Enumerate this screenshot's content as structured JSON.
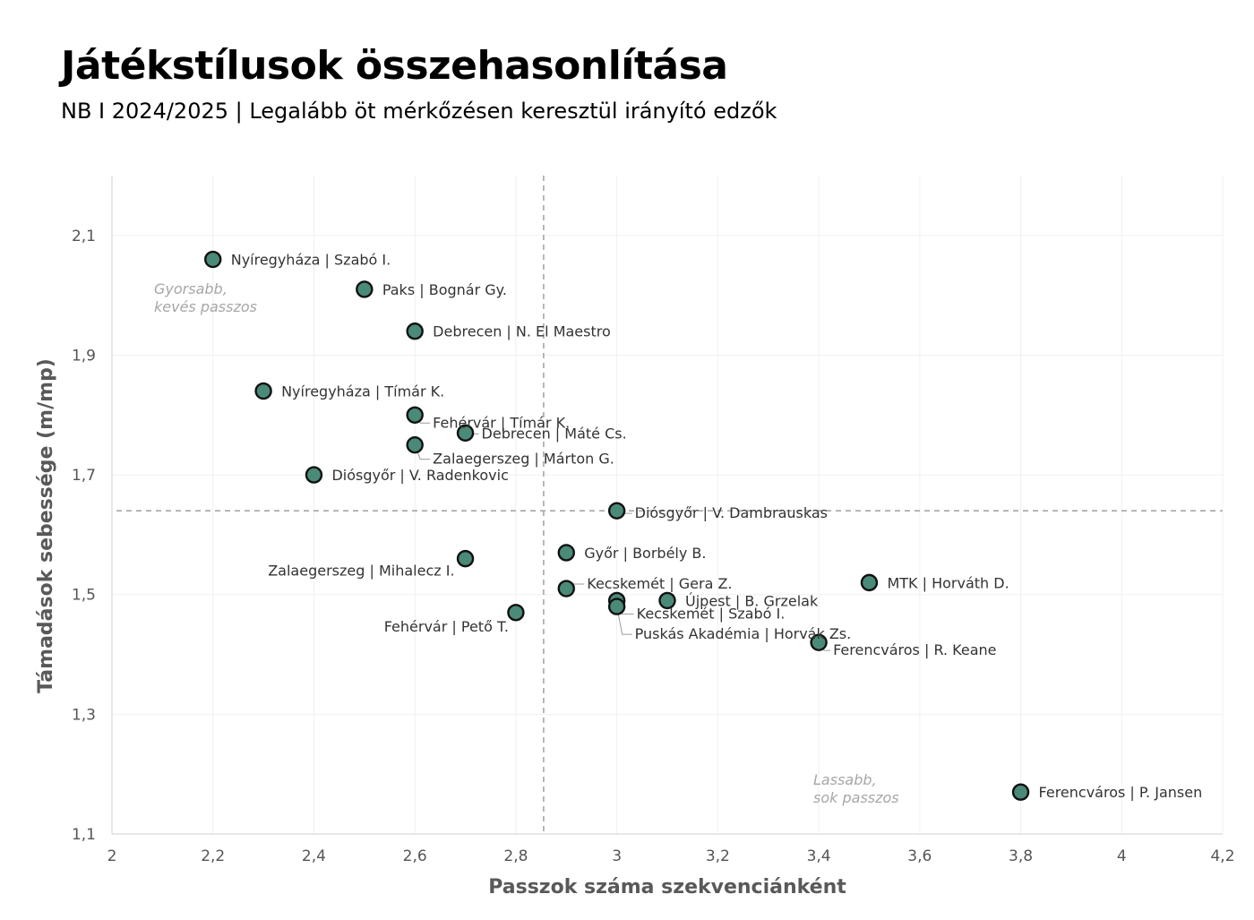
{
  "title": "Játékstílusok összehasonlítása",
  "subtitle": "NB I 2024/2025  |  Legalább öt mérkőzésen keresztül irányító edzők",
  "chart_data": {
    "type": "scatter",
    "xlabel": "Passzok száma szekvenciánként",
    "ylabel": "Támadások sebessége (m/mp)",
    "xlim": [
      2,
      4.2
    ],
    "ylim": [
      1.1,
      2.2
    ],
    "xticks": [
      "2",
      "2,2",
      "2,4",
      "2,6",
      "2,8",
      "3",
      "3,2",
      "3,4",
      "3,6",
      "3,8",
      "4",
      "4,2"
    ],
    "yticks": [
      "1,1",
      "1,3",
      "1,5",
      "1,7",
      "1,9",
      "2,1"
    ],
    "grid": true,
    "marker_color": "#4a8a78",
    "reference_lines": {
      "x": 2.855,
      "y": 1.64
    },
    "quadrant_notes": [
      {
        "line1": "Gyorsabb,",
        "line2": "kevés passzos"
      },
      {
        "line1": "Lassabb,",
        "line2": "sok passzos"
      }
    ],
    "points": [
      {
        "label": "Nyíregyháza | Szabó I.",
        "x": 2.2,
        "y": 2.06
      },
      {
        "label": "Paks | Bognár Gy.",
        "x": 2.5,
        "y": 2.01
      },
      {
        "label": "Debrecen | N. El Maestro",
        "x": 2.6,
        "y": 1.94
      },
      {
        "label": "Nyíregyháza | Tímár K.",
        "x": 2.3,
        "y": 1.84
      },
      {
        "label": "Fehérvár | Tímár K.",
        "x": 2.6,
        "y": 1.8
      },
      {
        "label": "Debrecen | Máté Cs.",
        "x": 2.7,
        "y": 1.77
      },
      {
        "label": "Zalaegerszeg | Márton G.",
        "x": 2.6,
        "y": 1.75
      },
      {
        "label": "Diósgyőr | V. Radenkovic",
        "x": 2.4,
        "y": 1.7
      },
      {
        "label": "Diósgyőr | V. Dambrauskas",
        "x": 3.0,
        "y": 1.64
      },
      {
        "label": "Győr | Borbély B.",
        "x": 2.9,
        "y": 1.57
      },
      {
        "label": "Zalaegerszeg | Mihalecz I.",
        "x": 2.7,
        "y": 1.56
      },
      {
        "label": "MTK | Horváth D.",
        "x": 3.5,
        "y": 1.52
      },
      {
        "label": "Kecskemét | Gera Z.",
        "x": 2.9,
        "y": 1.51
      },
      {
        "label": "Újpest | B. Grzelak",
        "x": 3.1,
        "y": 1.49
      },
      {
        "label": "Kecskemét | Szabó I.",
        "x": 3.0,
        "y": 1.49
      },
      {
        "label": "Puskás Akadémia | Horvák Zs.",
        "x": 3.0,
        "y": 1.48
      },
      {
        "label": "Fehérvár | Pető T.",
        "x": 2.8,
        "y": 1.47
      },
      {
        "label": "Ferencváros | R. Keane",
        "x": 3.4,
        "y": 1.42
      },
      {
        "label": "Ferencváros | P. Jansen",
        "x": 3.8,
        "y": 1.17
      }
    ]
  }
}
